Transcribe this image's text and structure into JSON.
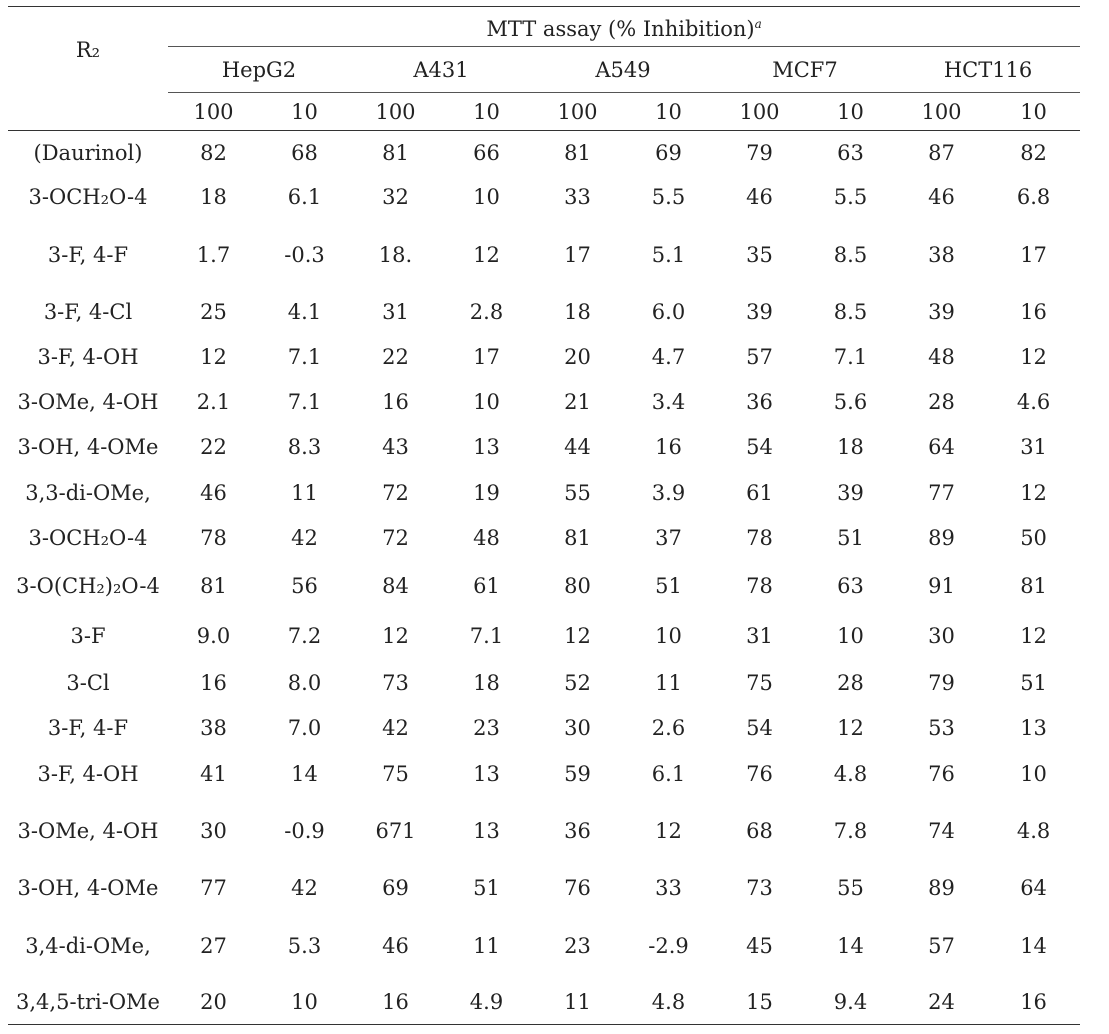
{
  "table": {
    "row_label_header": "R₂",
    "group_header": "MTT assay (% Inhibition)",
    "group_header_footnote": "a",
    "cell_lines": [
      "HepG2",
      "A431",
      "A549",
      "MCF7",
      "HCT116"
    ],
    "concentrations": [
      "100",
      "10",
      "100",
      "10",
      "100",
      "10",
      "100",
      "10",
      "100",
      "10"
    ],
    "rows": [
      {
        "label": "(Daurinol)",
        "values": [
          "82",
          "68",
          "81",
          "66",
          "81",
          "69",
          "79",
          "63",
          "87",
          "82"
        ]
      },
      {
        "label": "3-OCH₂O-4",
        "values": [
          "18",
          "6.1",
          "32",
          "10",
          "33",
          "5.5",
          "46",
          "5.5",
          "46",
          "6.8"
        ]
      },
      {
        "label": "3-F, 4-F",
        "values": [
          "1.7",
          "-0.3",
          "18.",
          "12",
          "17",
          "5.1",
          "35",
          "8.5",
          "38",
          "17"
        ]
      },
      {
        "label": "3-F, 4-Cl",
        "values": [
          "25",
          "4.1",
          "31",
          "2.8",
          "18",
          "6.0",
          "39",
          "8.5",
          "39",
          "16"
        ]
      },
      {
        "label": "3-F, 4-OH",
        "values": [
          "12",
          "7.1",
          "22",
          "17",
          "20",
          "4.7",
          "57",
          "7.1",
          "48",
          "12"
        ]
      },
      {
        "label": "3-OMe, 4-OH",
        "values": [
          "2.1",
          "7.1",
          "16",
          "10",
          "21",
          "3.4",
          "36",
          "5.6",
          "28",
          "4.6"
        ]
      },
      {
        "label": "3-OH, 4-OMe",
        "values": [
          "22",
          "8.3",
          "43",
          "13",
          "44",
          "16",
          "54",
          "18",
          "64",
          "31"
        ]
      },
      {
        "label": "3,3-di-OMe,",
        "values": [
          "46",
          "11",
          "72",
          "19",
          "55",
          "3.9",
          "61",
          "39",
          "77",
          "12"
        ]
      },
      {
        "label": "3-OCH₂O-4",
        "values": [
          "78",
          "42",
          "72",
          "48",
          "81",
          "37",
          "78",
          "51",
          "89",
          "50"
        ]
      },
      {
        "label": "3-O(CH₂)₂O-4",
        "values": [
          "81",
          "56",
          "84",
          "61",
          "80",
          "51",
          "78",
          "63",
          "91",
          "81"
        ]
      },
      {
        "label": "3-F",
        "values": [
          "9.0",
          "7.2",
          "12",
          "7.1",
          "12",
          "10",
          "31",
          "10",
          "30",
          "12"
        ]
      },
      {
        "label": "3-Cl",
        "values": [
          "16",
          "8.0",
          "73",
          "18",
          "52",
          "11",
          "75",
          "28",
          "79",
          "51"
        ]
      },
      {
        "label": "3-F, 4-F",
        "values": [
          "38",
          "7.0",
          "42",
          "23",
          "30",
          "2.6",
          "54",
          "12",
          "53",
          "13"
        ]
      },
      {
        "label": "3-F, 4-OH",
        "values": [
          "41",
          "14",
          "75",
          "13",
          "59",
          "6.1",
          "76",
          "4.8",
          "76",
          "10"
        ]
      },
      {
        "label": "3-OMe, 4-OH",
        "values": [
          "30",
          "-0.9",
          "671",
          "13",
          "36",
          "12",
          "68",
          "7.8",
          "74",
          "4.8"
        ]
      },
      {
        "label": "3-OH, 4-OMe",
        "values": [
          "77",
          "42",
          "69",
          "51",
          "76",
          "33",
          "73",
          "55",
          "89",
          "64"
        ]
      },
      {
        "label": "3,4-di-OMe,",
        "values": [
          "27",
          "5.3",
          "46",
          "11",
          "23",
          "-2.9",
          "45",
          "14",
          "57",
          "14"
        ]
      },
      {
        "label": "3,4,5-tri-OMe",
        "values": [
          "20",
          "10",
          "16",
          "4.9",
          "11",
          "4.8",
          "15",
          "9.4",
          "24",
          "16"
        ]
      }
    ]
  }
}
